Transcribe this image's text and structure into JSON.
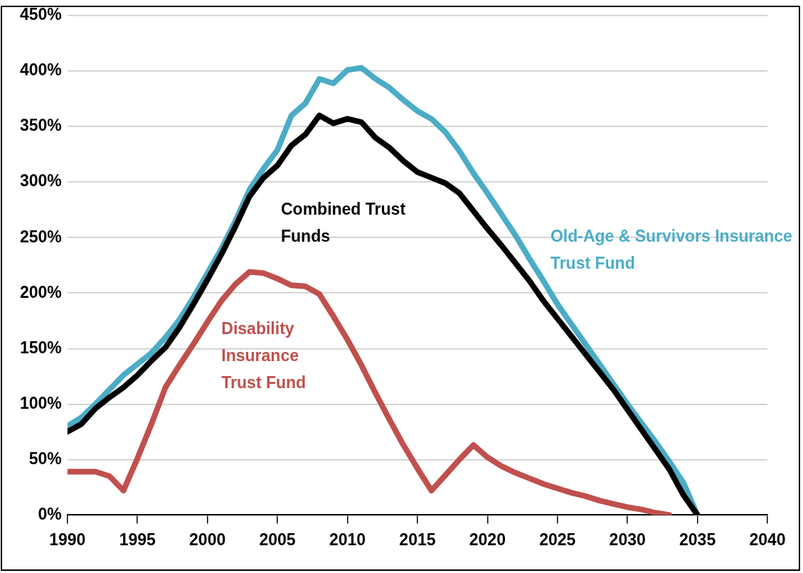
{
  "chart_data": {
    "type": "line",
    "xlim": [
      1990,
      2040
    ],
    "xticks": [
      1990,
      1995,
      2000,
      2005,
      2010,
      2015,
      2020,
      2025,
      2030,
      2035,
      2040
    ],
    "ylim": [
      0,
      450
    ],
    "yticks": [
      {
        "value": 0,
        "label": "0%"
      },
      {
        "value": 50,
        "label": "50%"
      },
      {
        "value": 100,
        "label": "100%"
      },
      {
        "value": 150,
        "label": "150%"
      },
      {
        "value": 200,
        "label": "200%"
      },
      {
        "value": 250,
        "label": "250%"
      },
      {
        "value": 300,
        "label": "300%"
      },
      {
        "value": 350,
        "label": "350%"
      },
      {
        "value": 400,
        "label": "400%"
      },
      {
        "value": 450,
        "label": "450%"
      }
    ],
    "grid": "y",
    "legend": false,
    "marker": "none",
    "line_style": "solid",
    "series": [
      {
        "name": "Combined Trust Funds",
        "color": "#000000",
        "x": [
          1990,
          1991,
          1992,
          1993,
          1994,
          1995,
          1996,
          1997,
          1998,
          1999,
          2000,
          2001,
          2002,
          2003,
          2004,
          2005,
          2006,
          2007,
          2008,
          2009,
          2010,
          2011,
          2012,
          2013,
          2014,
          2015,
          2016,
          2017,
          2018,
          2019,
          2020,
          2021,
          2022,
          2023,
          2024,
          2025,
          2026,
          2027,
          2028,
          2029,
          2030,
          2031,
          2032,
          2033,
          2034,
          2035
        ],
        "values": [
          75,
          82,
          96,
          106,
          115,
          126,
          139,
          151,
          169,
          190,
          212,
          235,
          260,
          287,
          304,
          315,
          333,
          343,
          360,
          353,
          357,
          354,
          340,
          331,
          319,
          309,
          304,
          299,
          290,
          274,
          258,
          243,
          227,
          211,
          193,
          177,
          161,
          145,
          129,
          113,
          95,
          77,
          59,
          41,
          18,
          0
        ]
      },
      {
        "name": "Old-Age & Survivors Insurance Trust Fund",
        "color": "#4bacc6",
        "x": [
          1990,
          1991,
          1992,
          1993,
          1994,
          1995,
          1996,
          1997,
          1998,
          1999,
          2000,
          2001,
          2002,
          2003,
          2004,
          2005,
          2006,
          2007,
          2008,
          2009,
          2010,
          2011,
          2012,
          2013,
          2014,
          2015,
          2016,
          2017,
          2018,
          2019,
          2020,
          2021,
          2022,
          2023,
          2024,
          2025,
          2026,
          2027,
          2028,
          2029,
          2030,
          2031,
          2032,
          2033,
          2034,
          2035
        ],
        "values": [
          80,
          88,
          100,
          113,
          126,
          136,
          146,
          160,
          176,
          196,
          218,
          240,
          265,
          293,
          312,
          329,
          360,
          371,
          393,
          389,
          401,
          403,
          393,
          385,
          374,
          364,
          357,
          345,
          328,
          308,
          290,
          271,
          252,
          231,
          211,
          190,
          172,
          154,
          136,
          118,
          100,
          83,
          66,
          48,
          29,
          0
        ]
      },
      {
        "name": "Disability Insurance Trust Fund",
        "color": "#c0504d",
        "x": [
          1990,
          1991,
          1992,
          1993,
          1994,
          1995,
          1996,
          1997,
          1998,
          1999,
          2000,
          2001,
          2002,
          2003,
          2004,
          2005,
          2006,
          2007,
          2008,
          2009,
          2010,
          2011,
          2012,
          2013,
          2014,
          2015,
          2016,
          2017,
          2018,
          2019,
          2020,
          2021,
          2022,
          2023,
          2024,
          2025,
          2026,
          2027,
          2028,
          2029,
          2030,
          2031,
          2032,
          2033
        ],
        "values": [
          39,
          39,
          39,
          35,
          22,
          51,
          82,
          115,
          135,
          154,
          174,
          193,
          208,
          219,
          218,
          213,
          207,
          206,
          199,
          179,
          158,
          135,
          110,
          86,
          63,
          42,
          22,
          36,
          50,
          63,
          52,
          44,
          38,
          33,
          28,
          24,
          20,
          17,
          13,
          10,
          7,
          5,
          2,
          0
        ]
      }
    ]
  }
}
